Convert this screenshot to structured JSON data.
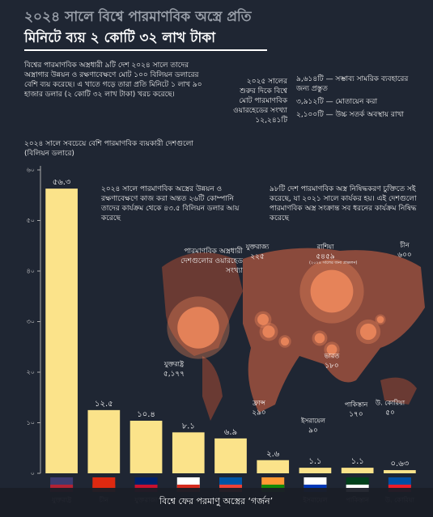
{
  "header": {
    "title_line1": "২০২৪ সালে বিশ্বে পারমাণবিক অস্ত্রে প্রতি",
    "title_line2": "মিনিটে ব্যয় ২ কোটি ৩২ লাখ টাকা"
  },
  "intro": "বিশ্বের পারমাণবিক অস্ত্রধারী ৯টি দেশ ২০২৪ সালে তাদের অস্ত্রাগার উন্নয়ন ও রক্ষণাবেক্ষণে মোট ১০০ বিলিয়ন ডলারের বেশি ব্যয় করেছে। এ খাতে গড়ে তারা প্রতি মিনিটে ১ লাখ ৯০ হাজার ডলার (২ কোটি ৩২ লাখ টাকা) খরচ করেছে।",
  "warhead_total": {
    "label": "২০২৫ সালের শুরুর দিকে বিশ্বে মোট পারমাণবিক ওয়ারহেডের সংখ্যা ১২,২৪১টি",
    "items": [
      "৯,৬১৪টি — সম্ভাব্য সামরিক ব্যবহারের জন্য প্রস্তুত",
      "৩,৯১২টি — মোতায়েন করা",
      "২,১০০টি — উচ্চ সতর্ক অবস্থায় রাখা"
    ]
  },
  "chart_data": {
    "type": "bar",
    "title": "২০২৪ সালে সবচেয়ে বেশি পারমাণবিক ব্যয়কারী দেশগুলো (বিলিয়ন ডলারে)",
    "categories": [
      "যুক্তরাষ্ট্র",
      "চীন",
      "যুক্তরাজ্য",
      null,
      null,
      null,
      "ইসরায়েল",
      "পাকিস্তান",
      "উ. কোরিয়া"
    ],
    "values": [
      56.3,
      12.5,
      10.4,
      8.1,
      6.9,
      2.6,
      1.1,
      1.1,
      0.63
    ],
    "value_labels": [
      "৫৬.৩",
      "১২.৫",
      "১০.৪",
      "৮.১",
      "৬.৯",
      "২.৬",
      "১.১",
      "১.১",
      "০.৬৩"
    ],
    "color": "#fbe38a",
    "ylim": [
      0,
      60
    ],
    "yticks": [
      {
        "value": 0,
        "label": "০"
      },
      {
        "value": 10,
        "label": "১০"
      },
      {
        "value": 20,
        "label": "২০"
      },
      {
        "value": 30,
        "label": "৩০"
      },
      {
        "value": 40,
        "label": "৪০"
      },
      {
        "value": 50,
        "label": "৫০"
      },
      {
        "value": 60,
        "label": "৬০"
      }
    ],
    "annotations": [
      "২০২৪ সালে পারমাণবিক অস্ত্রের উন্নয়ন ও রক্ষণাবেক্ষণে কাজ করা অন্তত ২৬টি কোম্পানি তাদের কার্যক্রম থেকে ৪৩.৫ বিলিয়ন ডলার আয় করেছে",
      "৯৮টি দেশ পারমাণবিক অস্ত্র নিষিদ্ধকরণ চুক্তিতে সই করেছে, যা ২০২১ সালে কার্যকর হয়। এই দেশগুলো পারমাণবিক অস্ত্র সংক্রান্ত সব ধরনের কার্যক্রম নিষিদ্ধ করেছে"
    ]
  },
  "map": {
    "title": "পারমাণবিক অস্ত্রধারী দেশগুলোর ওয়ারহেড সংখ্যা",
    "note": "(২০২৪ সালের জন্য প্রাক্কলন)",
    "warheads": [
      {
        "name": "যুক্তরাষ্ট্র",
        "value": 5177,
        "label": "৫,১৭৭"
      },
      {
        "name": "যুক্তরাজ্য",
        "value": 225,
        "label": "২২৫"
      },
      {
        "name": "রাশিয়া",
        "value": 5459,
        "label": "৫৪৫৯"
      },
      {
        "name": "চীন",
        "value": 600,
        "label": "৬০০"
      },
      {
        "name": "ফ্রান্স",
        "value": 290,
        "label": "২৯০"
      },
      {
        "name": "ইসরায়েল",
        "value": 90,
        "label": "৯০"
      },
      {
        "name": "ভারত",
        "value": 180,
        "label": "১৮০"
      },
      {
        "name": "পাকিস্তান",
        "value": 170,
        "label": "১৭০"
      },
      {
        "name": "উ. কোরিয়া",
        "value": 50,
        "label": "৫০"
      }
    ]
  },
  "footer_banner": "বিশ্বে ফের পরমাণু অস্ত্রের ‘গর্জন’"
}
